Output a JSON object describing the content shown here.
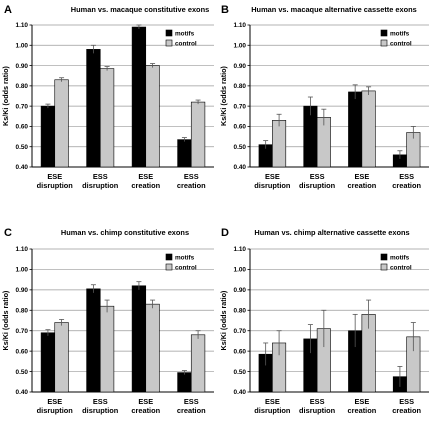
{
  "chart_data": [
    {
      "type": "bar",
      "panel": "A",
      "title": "Human vs. macaque constitutive exons",
      "ylabel": "Ks/Ki (odds ratio)",
      "ylim": [
        0.4,
        1.1
      ],
      "yticks": [
        "0.40",
        "0.50",
        "0.60",
        "0.70",
        "0.80",
        "0.90",
        "1.00",
        "1.10"
      ],
      "grid": true,
      "legend_position": "top-right",
      "categories": [
        [
          "ESE",
          "disruption"
        ],
        [
          "ESS",
          "disruption"
        ],
        [
          "ESE",
          "creation"
        ],
        [
          "ESS",
          "creation"
        ]
      ],
      "series": [
        {
          "name": "motifs",
          "color": "#000000",
          "values": [
            0.7,
            0.98,
            1.09,
            0.535
          ],
          "errors": [
            0.01,
            0.02,
            0.01,
            0.01
          ]
        },
        {
          "name": "control",
          "color": "#c8c8c8",
          "values": [
            0.83,
            0.885,
            0.9,
            0.72
          ],
          "errors": [
            0.01,
            0.01,
            0.01,
            0.01
          ]
        }
      ]
    },
    {
      "type": "bar",
      "panel": "B",
      "title": "Human vs. macaque alternative cassette exons",
      "ylabel": "Ks/Ki (odds ratio)",
      "ylim": [
        0.4,
        1.1
      ],
      "yticks": [
        "0.40",
        "0.50",
        "0.60",
        "0.70",
        "0.80",
        "0.90",
        "1.00",
        "1.10"
      ],
      "grid": true,
      "legend_position": "top-right",
      "categories": [
        [
          "ESE",
          "disruption"
        ],
        [
          "ESS",
          "disruption"
        ],
        [
          "ESE",
          "creation"
        ],
        [
          "ESS",
          "creation"
        ]
      ],
      "series": [
        {
          "name": "motifs",
          "color": "#000000",
          "values": [
            0.51,
            0.7,
            0.77,
            0.46
          ],
          "errors": [
            0.02,
            0.045,
            0.035,
            0.02
          ]
        },
        {
          "name": "control",
          "color": "#c8c8c8",
          "values": [
            0.63,
            0.645,
            0.775,
            0.57
          ],
          "errors": [
            0.03,
            0.04,
            0.02,
            0.03
          ]
        }
      ]
    },
    {
      "type": "bar",
      "panel": "C",
      "title": "Human vs. chimp constitutive exons",
      "ylabel": "Ks/Ki (odds ratio)",
      "ylim": [
        0.4,
        1.1
      ],
      "yticks": [
        "0.40",
        "0.50",
        "0.60",
        "0.70",
        "0.80",
        "0.90",
        "1.00",
        "1.10"
      ],
      "grid": true,
      "legend_position": "top-right",
      "categories": [
        [
          "ESE",
          "disruption"
        ],
        [
          "ESS",
          "disruption"
        ],
        [
          "ESE",
          "creation"
        ],
        [
          "ESS",
          "creation"
        ]
      ],
      "series": [
        {
          "name": "motifs",
          "color": "#000000",
          "values": [
            0.69,
            0.905,
            0.92,
            0.495
          ],
          "errors": [
            0.015,
            0.02,
            0.02,
            0.01
          ]
        },
        {
          "name": "control",
          "color": "#c8c8c8",
          "values": [
            0.74,
            0.82,
            0.83,
            0.68
          ],
          "errors": [
            0.015,
            0.03,
            0.02,
            0.02
          ]
        }
      ]
    },
    {
      "type": "bar",
      "panel": "D",
      "title": "Human vs. chimp alternative cassette exons",
      "ylabel": "Ks/Ki (odds ratio)",
      "ylim": [
        0.4,
        1.1
      ],
      "yticks": [
        "0.40",
        "0.50",
        "0.60",
        "0.70",
        "0.80",
        "0.90",
        "1.00",
        "1.10"
      ],
      "grid": true,
      "legend_position": "top-right",
      "categories": [
        [
          "ESE",
          "disruption"
        ],
        [
          "ESS",
          "disruption"
        ],
        [
          "ESE",
          "creation"
        ],
        [
          "ESS",
          "creation"
        ]
      ],
      "series": [
        {
          "name": "motifs",
          "color": "#000000",
          "values": [
            0.585,
            0.66,
            0.7,
            0.475
          ],
          "errors": [
            0.055,
            0.07,
            0.08,
            0.05
          ]
        },
        {
          "name": "control",
          "color": "#c8c8c8",
          "values": [
            0.64,
            0.71,
            0.78,
            0.67
          ],
          "errors": [
            0.06,
            0.09,
            0.07,
            0.07
          ]
        }
      ]
    }
  ]
}
